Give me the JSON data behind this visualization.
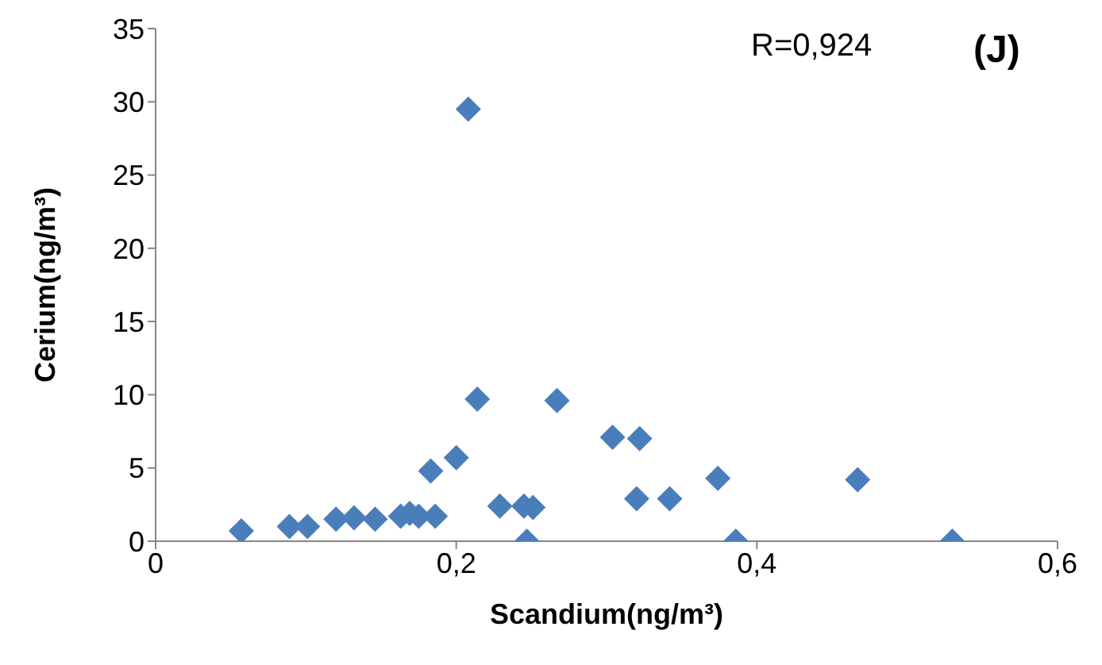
{
  "chart_data": {
    "type": "scatter",
    "xlabel": "Scandium(ng/m³)",
    "ylabel": "Cerium(ng/m³)",
    "annotations": [
      "R=0,924",
      "(J)"
    ],
    "x": [
      0.057,
      0.089,
      0.101,
      0.12,
      0.132,
      0.146,
      0.163,
      0.169,
      0.175,
      0.186,
      0.183,
      0.2,
      0.208,
      0.214,
      0.229,
      0.245,
      0.251,
      0.247,
      0.267,
      0.304,
      0.322,
      0.32,
      0.342,
      0.374,
      0.386,
      0.467,
      0.53
    ],
    "values": [
      0.7,
      1.0,
      1.0,
      1.5,
      1.6,
      1.5,
      1.7,
      1.9,
      1.7,
      1.7,
      4.8,
      5.7,
      29.5,
      9.7,
      2.4,
      2.4,
      2.3,
      0,
      9.6,
      7.1,
      7.0,
      2.9,
      2.9,
      4.3,
      0,
      4.2,
      0
    ],
    "color": "#4a7ebb",
    "marker": "diamond",
    "xlim": [
      0,
      0.6
    ],
    "xticks": [
      0,
      {
        "value": 0.2,
        "label": "0,2"
      },
      {
        "value": 0.4,
        "label": "0,4"
      },
      {
        "value": 0.6,
        "label": "0,6"
      }
    ],
    "ylim": [
      0,
      35
    ],
    "yticks": [
      0,
      5,
      10,
      15,
      20,
      25,
      30,
      35
    ],
    "grid": false,
    "legend": false
  }
}
